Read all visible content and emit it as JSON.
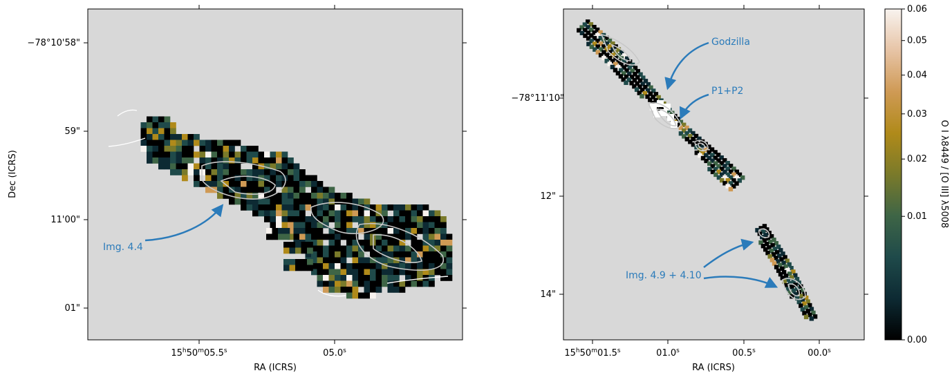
{
  "chart_data": [
    {
      "type": "heatmap",
      "panel": "left",
      "xlabel": "RA (ICRS)",
      "ylabel": "Dec (ICRS)",
      "x_ticks": [
        {
          "label": "15h50m05.5s",
          "sup": [
            "h",
            "m",
            "s"
          ],
          "parts": [
            "15",
            "50",
            "05.5"
          ]
        },
        {
          "label": "05.0s",
          "parts": [
            "05.0"
          ],
          "sup": [
            "s"
          ]
        }
      ],
      "y_ticks": [
        "−78°10'58\"",
        "59\"",
        "11'00\"",
        "01\""
      ],
      "annotations": [
        "Img. 4.4"
      ],
      "background": "#d8d8d8"
    },
    {
      "type": "heatmap",
      "panel": "right",
      "xlabel": "RA (ICRS)",
      "ylabel": "",
      "x_ticks": [
        {
          "label": "15h50m01.5s"
        },
        {
          "label": "01.0s"
        },
        {
          "label": "00.5s"
        },
        {
          "label": "00.0s"
        }
      ],
      "y_ticks": [
        "−78°11'10\"",
        "12\"",
        "14\""
      ],
      "annotations": [
        "Godzilla",
        "P1+P2",
        "Img. 4.9 + 4.10"
      ],
      "background": "#d8d8d8"
    }
  ],
  "colorbar": {
    "label": "O I λ8449 / [O III] λ5008",
    "ticks": [
      "0.00",
      "0.01",
      "0.02",
      "0.03",
      "0.04",
      "0.05",
      "0.06"
    ],
    "range": [
      0.0,
      0.06
    ],
    "colors": [
      "#000000",
      "#0d2a33",
      "#1f4a4a",
      "#3e6546",
      "#7a7a2a",
      "#b08a1a",
      "#cf9a55",
      "#e7c4a6",
      "#f8f3ef"
    ]
  },
  "text": {
    "left_x1_a": "15",
    "left_x1_h": "h",
    "left_x1_b": "50",
    "left_x1_m": "m",
    "left_x1_c": "05.5",
    "left_x1_s": "s",
    "left_x2_a": "05.0",
    "left_x2_s": "s",
    "right_x1_a": "15",
    "right_x1_h": "h",
    "right_x1_b": "50",
    "right_x1_m": "m",
    "right_x1_c": "01.5",
    "right_x1_s": "s",
    "right_x2_a": "01.0",
    "right_x2_s": "s",
    "right_x3_a": "00.5",
    "right_x3_s": "s",
    "right_x4_a": "00.0",
    "right_x4_s": "s"
  },
  "accent": "#2b7bba"
}
